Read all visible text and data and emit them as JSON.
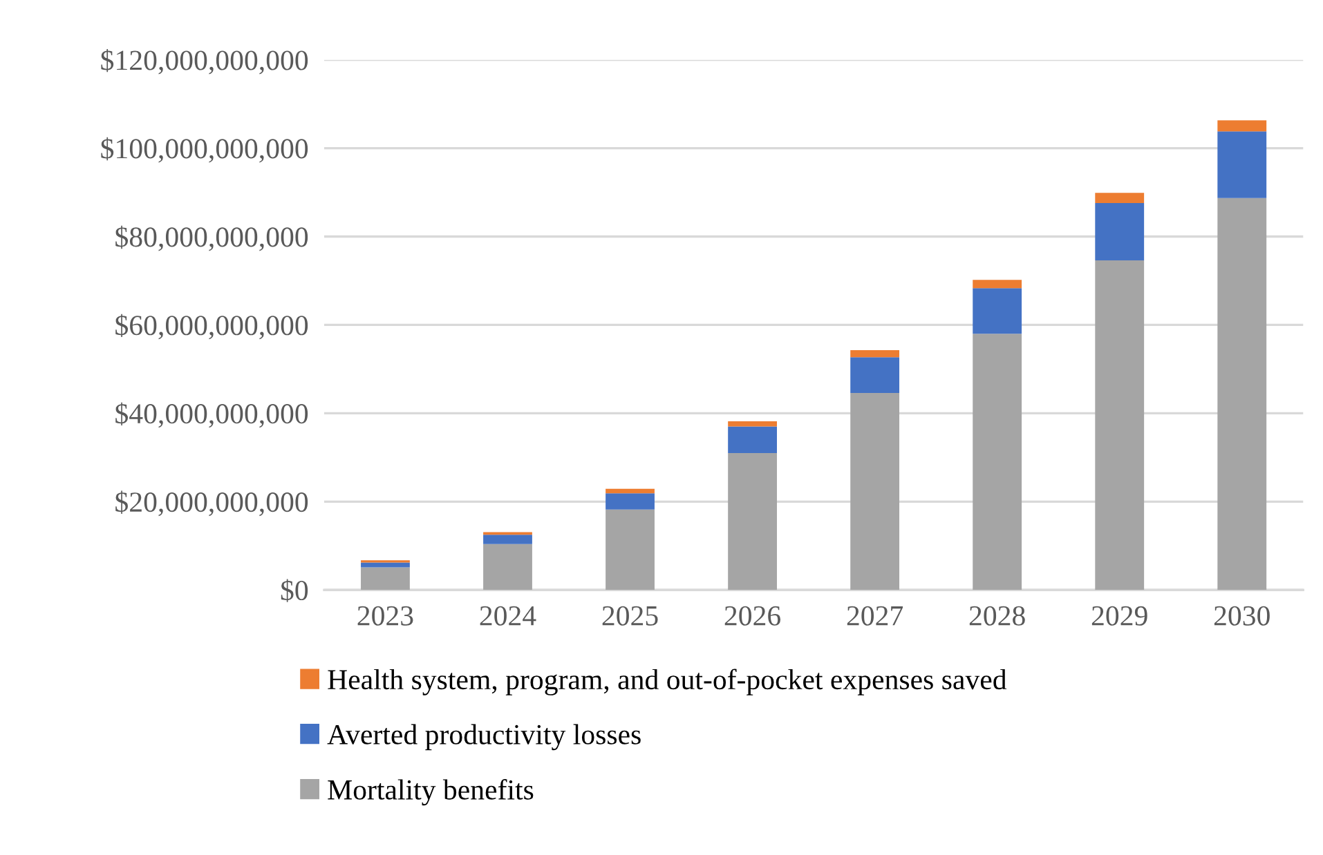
{
  "chart_data": {
    "type": "bar",
    "stacked": true,
    "categories": [
      "2023",
      "2024",
      "2025",
      "2026",
      "2027",
      "2028",
      "2029",
      "2030"
    ],
    "series": [
      {
        "name": "Mortality benefits",
        "color": "#a5a5a5",
        "values": [
          5100000000,
          10400000000,
          18200000000,
          31000000000,
          44600000000,
          58000000000,
          74600000000,
          88700000000
        ]
      },
      {
        "name": "Averted productivity losses",
        "color": "#4472c4",
        "values": [
          1100000000,
          2100000000,
          3700000000,
          6000000000,
          8100000000,
          10300000000,
          13000000000,
          15100000000
        ]
      },
      {
        "name": "Health system, program, and out-of-pocket expenses saved",
        "color": "#ed7d31",
        "values": [
          500000000,
          600000000,
          1000000000,
          1200000000,
          1600000000,
          1900000000,
          2300000000,
          2500000000
        ]
      }
    ],
    "ylim": [
      0,
      120000000000
    ],
    "yticks": [
      {
        "value": 0,
        "label": "$0"
      },
      {
        "value": 20000000000,
        "label": "$20,000,000,000"
      },
      {
        "value": 40000000000,
        "label": "$40,000,000,000"
      },
      {
        "value": 60000000000,
        "label": "$60,000,000,000"
      },
      {
        "value": 80000000000,
        "label": "$80,000,000,000"
      },
      {
        "value": 100000000000,
        "label": "$100,000,000,000"
      },
      {
        "value": 120000000000,
        "label": "$120,000,000,000"
      }
    ],
    "grid": "y",
    "legend": "bottom"
  }
}
